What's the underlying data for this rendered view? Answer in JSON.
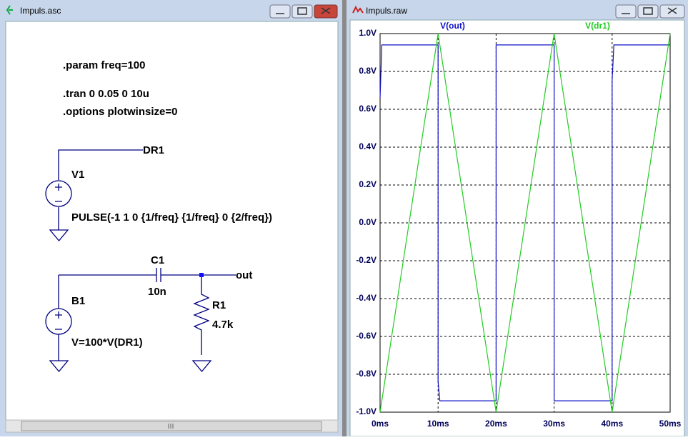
{
  "schematic_window": {
    "title": "Impuls.asc",
    "directives": [
      ".param freq=100",
      ".tran 0 0.05 0 10u",
      ".options plotwinsize=0"
    ],
    "labels": {
      "net_dr1": "DR1",
      "v1_name": "V1",
      "v1_value": "PULSE(-1 1 0 {1/freq} {1/freq} 0 {2/freq})",
      "c1_name": "C1",
      "c1_value": "10n",
      "net_out": "out",
      "r1_name": "R1",
      "r1_value": "4.7k",
      "b1_name": "B1",
      "b1_value": "V=100*V(DR1)"
    }
  },
  "waveform_window": {
    "title": "Impuls.raw"
  },
  "chart_data": {
    "type": "line",
    "series": [
      {
        "name": "V(out)",
        "color": "#1010c8",
        "x": [
          0,
          0.3,
          10,
          10,
          10.3,
          20,
          20,
          30,
          30,
          40,
          40,
          40.3,
          50
        ],
        "values": [
          0.66,
          0.94,
          0.94,
          -0.84,
          -0.94,
          -0.94,
          0.94,
          0.94,
          -0.94,
          -0.94,
          0.75,
          0.94,
          0.94
        ]
      },
      {
        "name": "V(dr1)",
        "color": "#22cc22",
        "x": [
          0,
          10,
          20,
          30,
          40,
          50
        ],
        "values": [
          -1,
          1,
          -1,
          1,
          -1,
          1
        ]
      }
    ],
    "xlim": [
      0,
      50
    ],
    "xticks": [
      {
        "value": 0,
        "label": "0ms"
      },
      {
        "value": 10,
        "label": "10ms"
      },
      {
        "value": 20,
        "label": "20ms"
      },
      {
        "value": 30,
        "label": "30ms"
      },
      {
        "value": 40,
        "label": "40ms"
      },
      {
        "value": 50,
        "label": "50ms"
      }
    ],
    "ylim": [
      -1,
      1
    ],
    "yticks": [
      {
        "value": -1,
        "label": "-1.0V"
      },
      {
        "value": -0.8,
        "label": "-0.8V"
      },
      {
        "value": -0.6,
        "label": "-0.6V"
      },
      {
        "value": -0.4,
        "label": "-0.4V"
      },
      {
        "value": -0.2,
        "label": "-0.2V"
      },
      {
        "value": 0,
        "label": "0.0V"
      },
      {
        "value": 0.2,
        "label": "0.2V"
      },
      {
        "value": 0.4,
        "label": "0.4V"
      },
      {
        "value": 0.6,
        "label": "0.6V"
      },
      {
        "value": 0.8,
        "label": "0.8V"
      },
      {
        "value": 1,
        "label": "1.0V"
      }
    ],
    "grid": true
  }
}
